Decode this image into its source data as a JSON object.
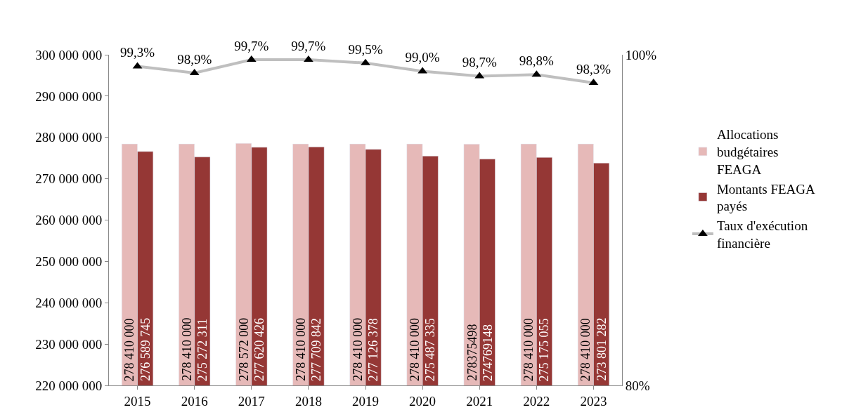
{
  "chart_data": {
    "type": "bar",
    "categories": [
      "2015",
      "2016",
      "2017",
      "2018",
      "2019",
      "2020",
      "2021",
      "2022",
      "2023"
    ],
    "series": [
      {
        "name": "Allocations budgétaires FEAGA",
        "color": "#e6b9b8",
        "values": [
          278410000,
          278410000,
          278572000,
          278410000,
          278410000,
          278410000,
          278375498,
          278410000,
          278410000
        ],
        "value_labels": [
          "278 410 000",
          "278 410 000",
          "278 572 000",
          "278 410 000",
          "278 410 000",
          "278 410 000",
          "278375498",
          "278 410 000",
          "278 410 000"
        ]
      },
      {
        "name": "Montants FEAGA payés",
        "color": "#953735",
        "values": [
          276589745,
          275272311,
          277620426,
          277709842,
          277126378,
          275487335,
          274769148,
          275175055,
          273801282
        ],
        "value_labels": [
          "276 589 745",
          "275 272 311",
          "277 620 426",
          "277 709 842",
          "277 126 378",
          "275 487 335",
          "274769148",
          "275 175 055",
          "273 801 282"
        ]
      },
      {
        "name": "Taux d'exécution financière",
        "type": "line",
        "axis": "y2",
        "color": "#bfbfbf",
        "marker": "triangle",
        "values": [
          99.3,
          98.9,
          99.7,
          99.7,
          99.5,
          99.0,
          98.7,
          98.8,
          98.3
        ],
        "value_labels": [
          "99,3%",
          "98,9%",
          "99,7%",
          "99,7%",
          "99,5%",
          "99,0%",
          "98,7%",
          "98,8%",
          "98,3%"
        ]
      }
    ],
    "ylim": [
      220000000,
      300000000
    ],
    "yticks": [
      {
        "value": 220000000,
        "label": "220 000 000"
      },
      {
        "value": 230000000,
        "label": "230 000 000"
      },
      {
        "value": 240000000,
        "label": "240 000 000"
      },
      {
        "value": 250000000,
        "label": "250 000 000"
      },
      {
        "value": 260000000,
        "label": "260 000 000"
      },
      {
        "value": 270000000,
        "label": "270 000 000"
      },
      {
        "value": 280000000,
        "label": "280 000 000"
      },
      {
        "value": 290000000,
        "label": "290 000 000"
      },
      {
        "value": 300000000,
        "label": "300 000 000"
      }
    ],
    "y2lim": [
      80,
      100
    ],
    "y2ticks": [
      {
        "value": 80,
        "label": "80%"
      },
      {
        "value": 100,
        "label": "100%"
      }
    ],
    "legend": "right"
  }
}
